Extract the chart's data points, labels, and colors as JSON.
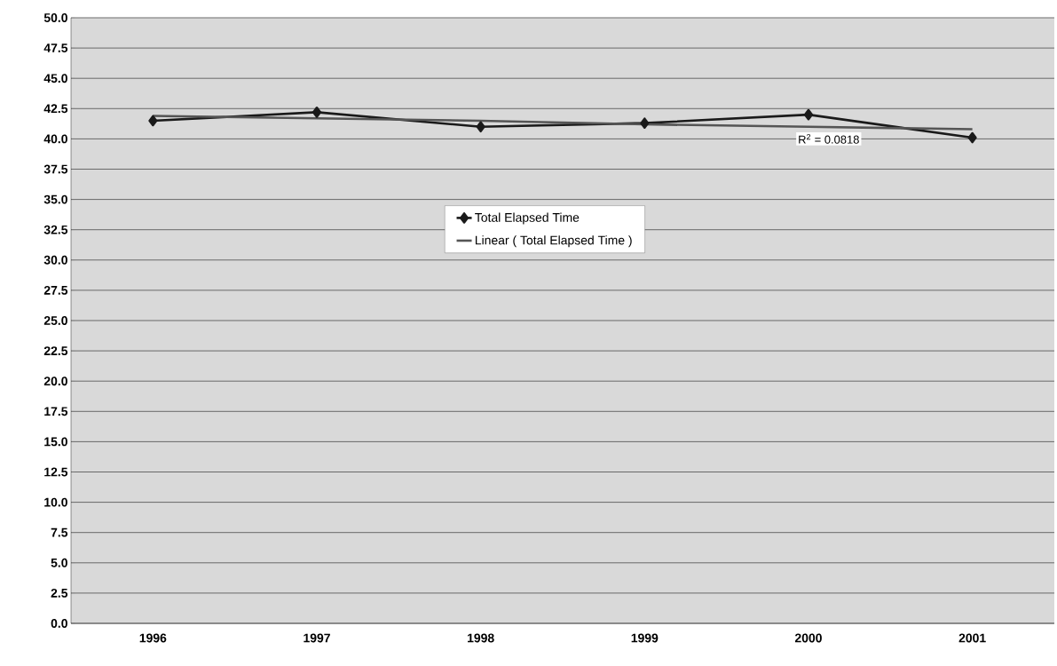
{
  "chart_data": {
    "type": "line",
    "categories": [
      "1996",
      "1997",
      "1998",
      "1999",
      "2000",
      "2001"
    ],
    "series": [
      {
        "name": "Total Elapsed Time",
        "color": "#1a1a1a",
        "values": [
          41.5,
          42.2,
          41.0,
          41.3,
          42.0,
          40.1
        ],
        "marker": "diamond"
      },
      {
        "name": "Linear ( Total Elapsed Time  )",
        "color": "#555555",
        "values": [
          41.9,
          41.7,
          41.5,
          41.2,
          41.0,
          40.8
        ],
        "marker": "none"
      }
    ],
    "ylim": [
      0,
      50
    ],
    "yticks": [
      {
        "value": 0,
        "label": "0.0"
      },
      2.5,
      {
        "value": 5,
        "label": "5.0"
      },
      7.5,
      {
        "value": 10,
        "label": "10.0"
      },
      12.5,
      {
        "value": 15,
        "label": "15.0"
      },
      17.5,
      {
        "value": 20,
        "label": "20.0"
      },
      22.5,
      {
        "value": 25,
        "label": "25.0"
      },
      27.5,
      {
        "value": 30,
        "label": "30.0"
      },
      32.5,
      {
        "value": 35,
        "label": "35.0"
      },
      37.5,
      {
        "value": 40,
        "label": "40.0"
      },
      42.5,
      {
        "value": 45,
        "label": "45.0"
      },
      47.5,
      {
        "value": 50,
        "label": "50.0"
      }
    ],
    "grid": "y",
    "legend": "center",
    "line_style": "solid",
    "annotations": [
      {
        "text": "R$^{2}$ = 0.0818",
        "x": "2000",
        "y": 41.0
      }
    ]
  }
}
